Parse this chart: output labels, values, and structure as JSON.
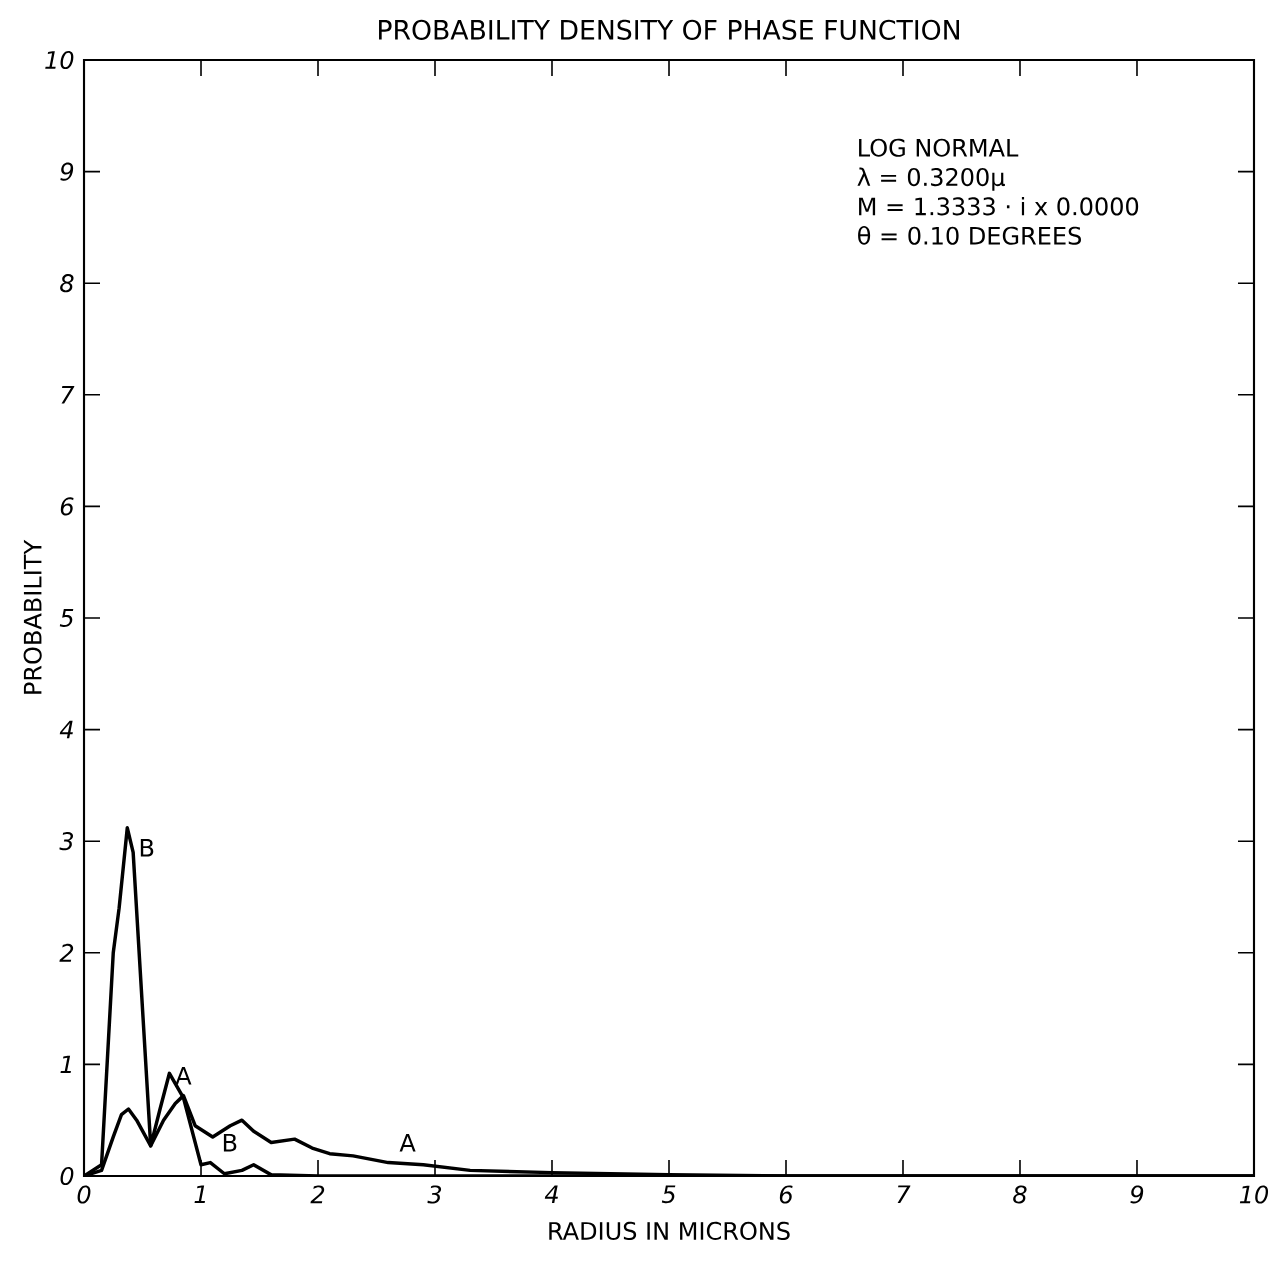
{
  "chart_data": {
    "type": "line",
    "title": "PROBABILITY DENSITY OF PHASE FUNCTION",
    "xlabel": "RADIUS IN MICRONS",
    "ylabel": "PROBABILITY",
    "xlim": [
      0,
      10
    ],
    "ylim": [
      0,
      10
    ],
    "xticks": [
      0,
      1,
      2,
      3,
      4,
      5,
      6,
      7,
      8,
      9,
      10
    ],
    "yticks": [
      0,
      1,
      2,
      3,
      4,
      5,
      6,
      7,
      8,
      9,
      10
    ],
    "grid": false,
    "marker": "none",
    "line_style": "solid",
    "series": [
      {
        "name": "A",
        "color": "#000000",
        "x": [
          0,
          0.15,
          0.25,
          0.32,
          0.38,
          0.45,
          0.57,
          0.68,
          0.78,
          0.85,
          0.95,
          1.1,
          1.25,
          1.35,
          1.45,
          1.6,
          1.8,
          1.95,
          2.1,
          2.3,
          2.6,
          2.9,
          3.3,
          4.0,
          5.0,
          6.0,
          10.0
        ],
        "values": [
          0,
          0.05,
          0.35,
          0.55,
          0.6,
          0.5,
          0.27,
          0.5,
          0.65,
          0.72,
          0.45,
          0.35,
          0.45,
          0.5,
          0.4,
          0.3,
          0.33,
          0.25,
          0.2,
          0.18,
          0.12,
          0.1,
          0.05,
          0.03,
          0.01,
          0,
          0
        ]
      },
      {
        "name": "B",
        "color": "#000000",
        "x": [
          0,
          0.15,
          0.25,
          0.3,
          0.37,
          0.42,
          0.57,
          0.65,
          0.73,
          0.85,
          1.0,
          1.08,
          1.2,
          1.35,
          1.45,
          1.6,
          2.0,
          10.0
        ],
        "values": [
          0,
          0.1,
          2.0,
          2.4,
          3.12,
          2.9,
          0.27,
          0.6,
          0.92,
          0.7,
          0.1,
          0.12,
          0.02,
          0.05,
          0.1,
          0.01,
          0,
          0
        ]
      }
    ],
    "annotations": [
      "LOG NORMAL",
      "λ = 0.3200μ",
      "M = 1.3333 · i x 0.0000",
      "θ = 0.10 DEGREES"
    ]
  }
}
